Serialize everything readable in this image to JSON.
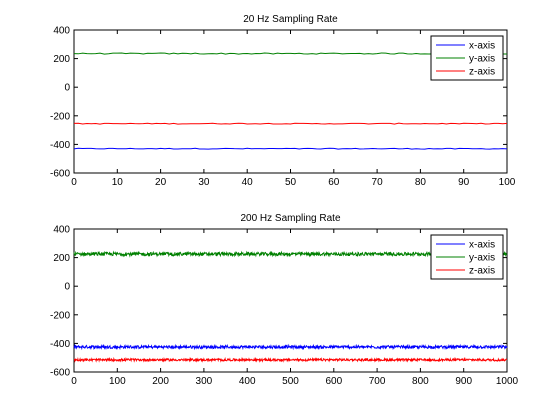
{
  "chart_data": [
    {
      "type": "line",
      "title": "20 Hz Sampling Rate",
      "xlabel": "",
      "ylabel": "",
      "xlim": [
        0,
        100
      ],
      "ylim": [
        -600,
        400
      ],
      "xticks": [
        0,
        10,
        20,
        30,
        40,
        50,
        60,
        70,
        80,
        90,
        100
      ],
      "yticks": [
        -600,
        -400,
        -200,
        0,
        200,
        400
      ],
      "grid": false,
      "legend_position": "top-right",
      "series": [
        {
          "name": "x-axis",
          "color": "#0000ff",
          "base": -430,
          "noise": 3,
          "x_range": [
            0,
            100
          ],
          "n_points": 100
        },
        {
          "name": "y-axis",
          "color": "#008000",
          "base": 235,
          "noise": 4,
          "x_range": [
            0,
            100
          ],
          "n_points": 100
        },
        {
          "name": "z-axis",
          "color": "#ff0000",
          "base": -255,
          "noise": 3,
          "x_range": [
            0,
            100
          ],
          "n_points": 100
        }
      ]
    },
    {
      "type": "line",
      "title": "200 Hz Sampling Rate",
      "xlabel": "",
      "ylabel": "",
      "xlim": [
        0,
        1000
      ],
      "ylim": [
        -600,
        400
      ],
      "xticks": [
        0,
        100,
        200,
        300,
        400,
        500,
        600,
        700,
        800,
        900,
        1000
      ],
      "yticks": [
        -600,
        -400,
        -200,
        0,
        200,
        400
      ],
      "grid": false,
      "legend_position": "top-right",
      "series": [
        {
          "name": "x-axis",
          "color": "#0000ff",
          "base": -425,
          "noise": 10,
          "x_range": [
            0,
            1000
          ],
          "n_points": 1000
        },
        {
          "name": "y-axis",
          "color": "#008000",
          "base": 225,
          "noise": 12,
          "x_range": [
            0,
            1000
          ],
          "n_points": 1000
        },
        {
          "name": "z-axis",
          "color": "#ff0000",
          "base": -515,
          "noise": 8,
          "x_range": [
            0,
            1000
          ],
          "n_points": 1000
        }
      ]
    }
  ]
}
